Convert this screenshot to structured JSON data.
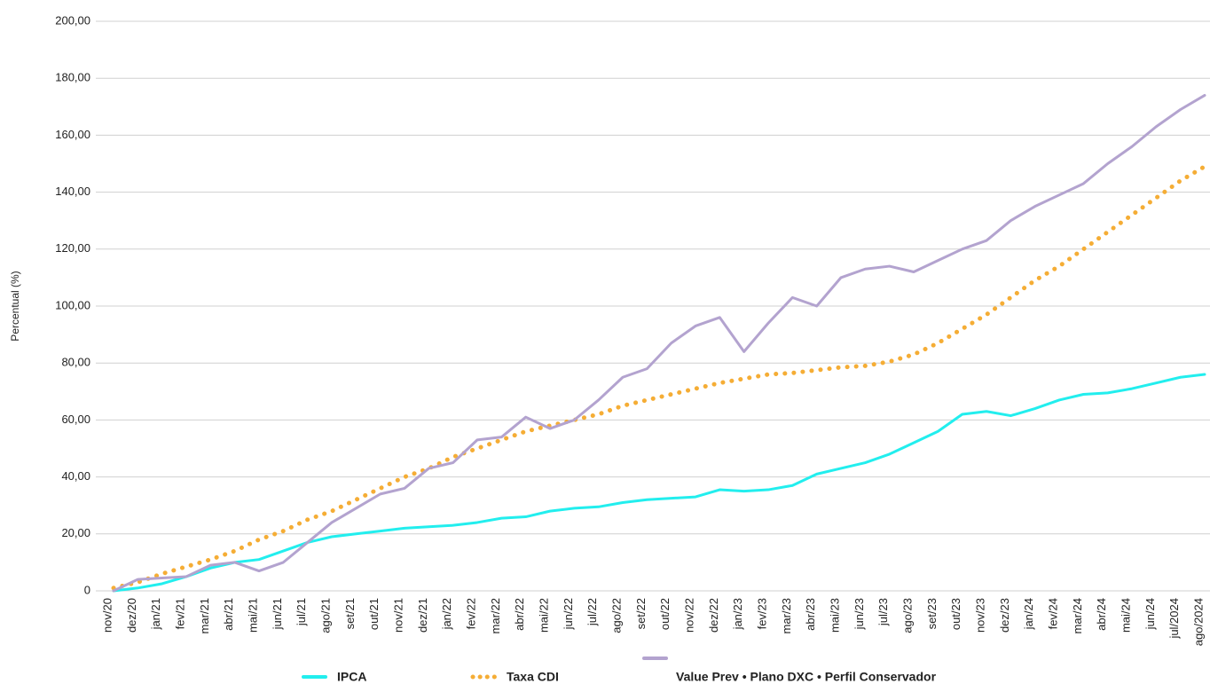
{
  "chart_data": {
    "type": "line",
    "y_label": "Percentual (%)",
    "categories": [
      "nov/20",
      "dez/20",
      "jan/21",
      "fev/21",
      "mar/21",
      "abr/21",
      "mai/21",
      "jun/21",
      "jul/21",
      "ago/21",
      "set/21",
      "out/21",
      "nov/21",
      "dez/21",
      "jan/22",
      "fev/22",
      "mar/22",
      "abr/22",
      "mai/22",
      "jun/22",
      "jul/22",
      "ago/22",
      "set/22",
      "out/22",
      "nov/22",
      "dez/22",
      "jan/23",
      "fev/23",
      "mar/23",
      "abr/23",
      "mai/23",
      "jun/23",
      "jul/23",
      "ago/23",
      "set/23",
      "out/23",
      "nov/23",
      "dez/23",
      "jan/24",
      "fev/24",
      "mar/24",
      "abr/24",
      "mai/24",
      "jun/24",
      "jul/2024",
      "ago/2024"
    ],
    "series": [
      {
        "name": "IPCA",
        "color": "#22eeee",
        "dash": "solid",
        "values": [
          0,
          1,
          2.5,
          5,
          8,
          10,
          11,
          14,
          17,
          19,
          20,
          21,
          22,
          22.5,
          23,
          24,
          25.5,
          26,
          28,
          29,
          29.5,
          31,
          32,
          32.5,
          33,
          35.5,
          35,
          35.5,
          37,
          41,
          43,
          45,
          48,
          52,
          56,
          62,
          63,
          61.5,
          64,
          67,
          69,
          69.5,
          71,
          73,
          75,
          76
        ]
      },
      {
        "name": "Taxa CDI",
        "color": "#f5ad35",
        "dash": "dotted",
        "values": [
          1,
          3,
          6,
          8.5,
          11,
          14,
          18,
          21,
          25,
          28,
          32,
          36,
          40,
          43,
          47,
          50,
          53,
          56,
          58,
          60,
          62,
          65,
          67,
          69,
          71,
          73,
          74.5,
          76,
          76.5,
          77.5,
          78.5,
          79,
          80.5,
          83,
          87,
          92,
          97,
          103,
          109,
          114,
          120,
          126,
          132,
          138,
          144,
          149
        ]
      },
      {
        "name": "Value Prev • Plano DXC • Perfil Conservador",
        "color": "#b3a3cf",
        "dash": "solid",
        "values": [
          0,
          4,
          4.5,
          5,
          9,
          10,
          7,
          10,
          17,
          24,
          29,
          34,
          36,
          43,
          45,
          53,
          54,
          61,
          57,
          60,
          67,
          75,
          78,
          87,
          93,
          96,
          84,
          94,
          103,
          100,
          110,
          113,
          114,
          112,
          116,
          120,
          123,
          130,
          135,
          139,
          143,
          150,
          156,
          163,
          169,
          174
        ]
      }
    ],
    "ylim": [
      0,
      200
    ],
    "yticks": [
      0,
      {
        "value": 20,
        "label": "20,00"
      },
      {
        "value": 40,
        "label": "40,00"
      },
      {
        "value": 60,
        "label": "60,00"
      },
      {
        "value": 80,
        "label": "80,00"
      },
      {
        "value": 100,
        "label": "100,00"
      },
      {
        "value": 120,
        "label": "120,00"
      },
      {
        "value": 140,
        "label": "140,00"
      },
      {
        "value": 160,
        "label": "160,00"
      },
      {
        "value": 180,
        "label": "180,00"
      },
      {
        "value": 200,
        "label": "200,00"
      }
    ],
    "grid": true
  }
}
